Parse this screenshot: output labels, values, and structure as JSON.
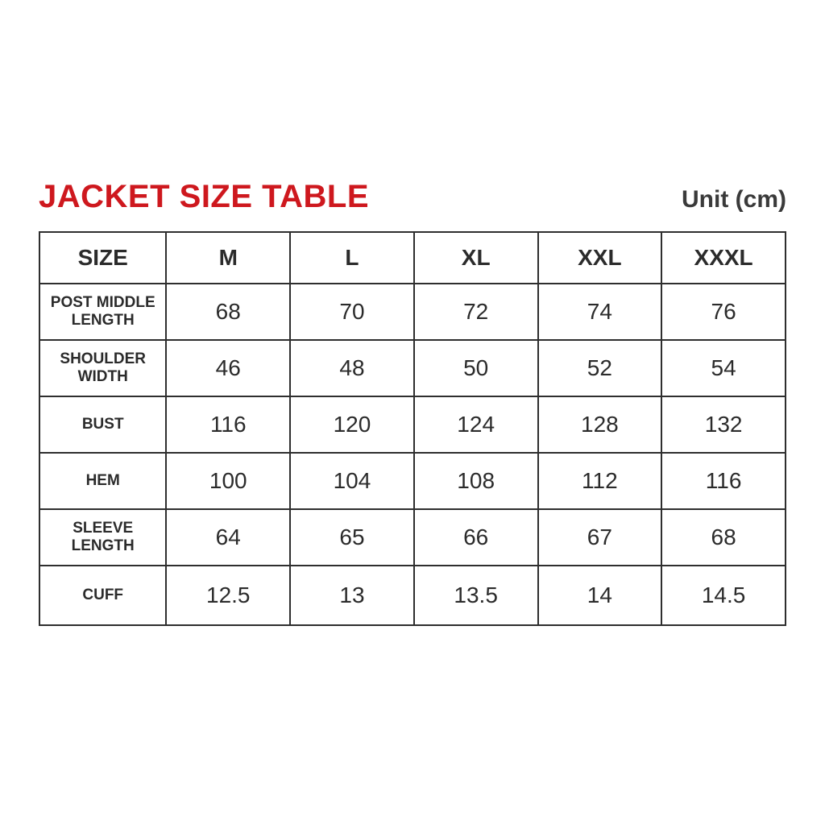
{
  "page": {
    "title": "JACKET SIZE TABLE",
    "unit_label": "Unit (cm)",
    "title_color": "#ce181e",
    "border_color": "#2e2e2e",
    "background_color": "#ffffff"
  },
  "table": {
    "header": [
      "SIZE",
      "M",
      "L",
      "XL",
      "XXL",
      "XXXL"
    ],
    "rows": [
      {
        "label": "POST MIDDLE LENGTH",
        "values": [
          "68",
          "70",
          "72",
          "74",
          "76"
        ]
      },
      {
        "label": "SHOULDER WIDTH",
        "values": [
          "46",
          "48",
          "50",
          "52",
          "54"
        ]
      },
      {
        "label": "BUST",
        "values": [
          "116",
          "120",
          "124",
          "128",
          "132"
        ]
      },
      {
        "label": "HEM",
        "values": [
          "100",
          "104",
          "108",
          "112",
          "116"
        ]
      },
      {
        "label": "SLEEVE LENGTH",
        "values": [
          "64",
          "65",
          "66",
          "67",
          "68"
        ]
      },
      {
        "label": "CUFF",
        "values": [
          "12.5",
          "13",
          "13.5",
          "14",
          "14.5"
        ]
      }
    ]
  },
  "chart_data": {
    "type": "table",
    "title": "JACKET SIZE TABLE",
    "unit": "cm",
    "columns": [
      "SIZE",
      "M",
      "L",
      "XL",
      "XXL",
      "XXXL"
    ],
    "rows": [
      [
        "POST MIDDLE LENGTH",
        68,
        70,
        72,
        74,
        76
      ],
      [
        "SHOULDER WIDTH",
        46,
        48,
        50,
        52,
        54
      ],
      [
        "BUST",
        116,
        120,
        124,
        128,
        132
      ],
      [
        "HEM",
        100,
        104,
        108,
        112,
        116
      ],
      [
        "SLEEVE LENGTH",
        64,
        65,
        66,
        67,
        68
      ],
      [
        "CUFF",
        12.5,
        13,
        13.5,
        14,
        14.5
      ]
    ]
  }
}
